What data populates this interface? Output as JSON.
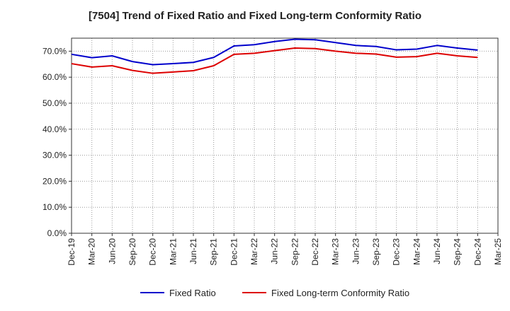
{
  "chart_data": {
    "type": "line",
    "title": "[7504]  Trend of Fixed Ratio and Fixed Long-term Conformity Ratio",
    "xlabel": "",
    "ylabel": "",
    "categories": [
      "Dec-19",
      "Mar-20",
      "Jun-20",
      "Sep-20",
      "Dec-20",
      "Mar-21",
      "Jun-21",
      "Sep-21",
      "Dec-21",
      "Mar-22",
      "Jun-22",
      "Sep-22",
      "Dec-22",
      "Mar-23",
      "Jun-23",
      "Sep-23",
      "Dec-23",
      "Mar-24",
      "Jun-24",
      "Sep-24",
      "Dec-24",
      "Mar-25"
    ],
    "ylim": [
      0,
      75
    ],
    "yticks": [
      0,
      10,
      20,
      30,
      40,
      50,
      60,
      70
    ],
    "ytick_labels": [
      "0.0%",
      "10.0%",
      "20.0%",
      "30.0%",
      "40.0%",
      "50.0%",
      "60.0%",
      "70.0%"
    ],
    "grid": true,
    "legend_position": "bottom",
    "series": [
      {
        "name": "Fixed Ratio",
        "color": "#0000cc",
        "values": [
          68.8,
          67.5,
          68.2,
          66.0,
          64.8,
          65.2,
          65.7,
          67.6,
          72.0,
          72.5,
          73.7,
          74.6,
          74.4,
          73.3,
          72.2,
          71.8,
          70.5,
          70.8,
          72.2,
          71.2,
          70.4,
          null
        ]
      },
      {
        "name": "Fixed Long-term Conformity Ratio",
        "color": "#dd0000",
        "values": [
          65.2,
          63.9,
          64.4,
          62.6,
          61.5,
          62.0,
          62.5,
          64.4,
          68.8,
          69.2,
          70.2,
          71.2,
          71.0,
          70.0,
          69.2,
          68.9,
          67.7,
          67.9,
          69.2,
          68.2,
          67.6,
          null
        ]
      }
    ]
  }
}
